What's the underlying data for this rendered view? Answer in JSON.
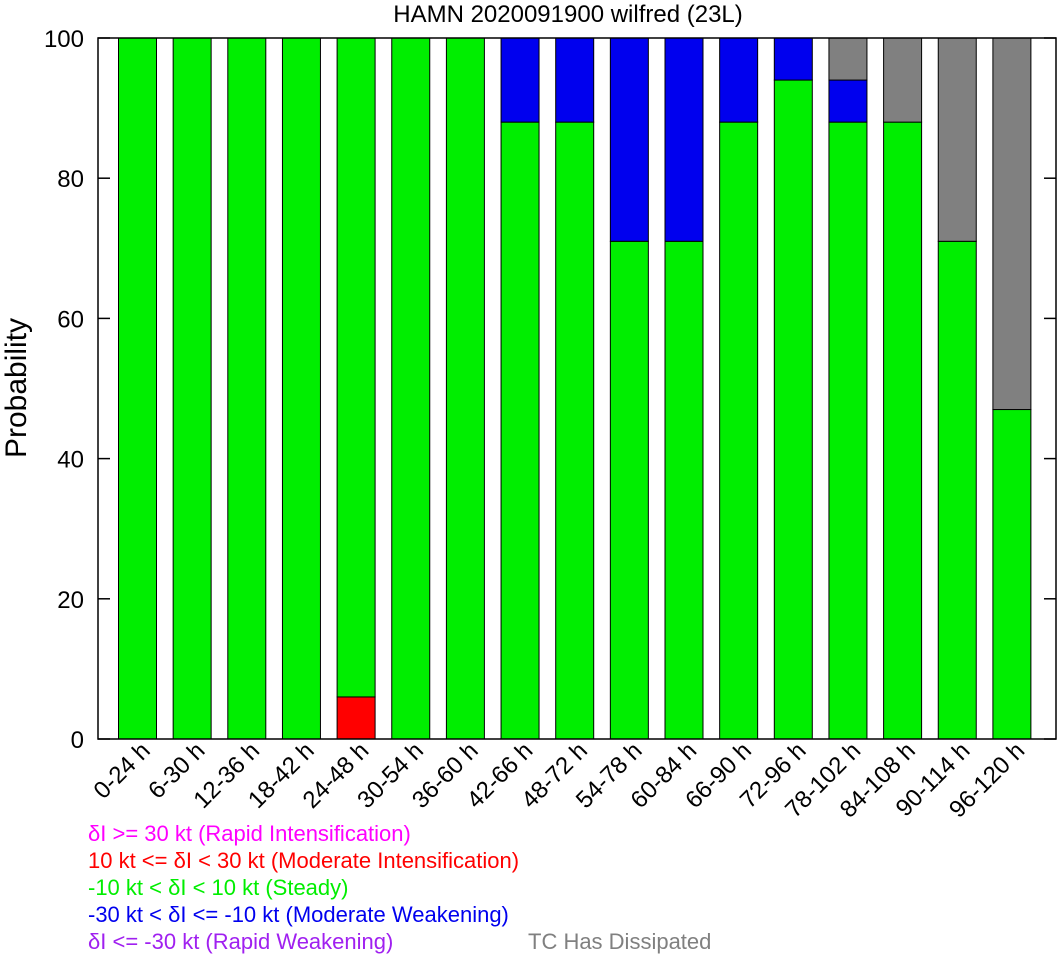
{
  "chart_data": {
    "type": "bar",
    "stacked": true,
    "title": "HAMN 2020091900 wilfred (23L)",
    "xlabel": "",
    "ylabel": "Probability",
    "ylim": [
      0,
      100
    ],
    "yticks": [
      0,
      20,
      40,
      60,
      80,
      100
    ],
    "grid": false,
    "categories": [
      "0-24 h",
      "6-30 h",
      "12-36 h",
      "18-42 h",
      "24-48 h",
      "30-54 h",
      "36-60 h",
      "42-66 h",
      "48-72 h",
      "54-78 h",
      "60-84 h",
      "66-90 h",
      "72-96 h",
      "78-102 h",
      "84-108 h",
      "90-114 h",
      "96-120 h"
    ],
    "series": [
      {
        "name": "δI >= 30 kt (Rapid Intensification)",
        "color": "#ff00ff",
        "values": [
          0,
          0,
          0,
          0,
          0,
          0,
          0,
          0,
          0,
          0,
          0,
          0,
          0,
          0,
          0,
          0,
          0
        ]
      },
      {
        "name": "10 kt <= δI < 30 kt (Moderate Intensification)",
        "color": "#ff0000",
        "values": [
          0,
          0,
          0,
          0,
          6,
          0,
          0,
          0,
          0,
          0,
          0,
          0,
          0,
          0,
          0,
          0,
          0
        ]
      },
      {
        "name": "-10 kt < δI < 10 kt (Steady)",
        "color": "#00ee00",
        "values": [
          100,
          100,
          100,
          100,
          94,
          100,
          100,
          88,
          88,
          71,
          71,
          88,
          94,
          88,
          88,
          71,
          47
        ]
      },
      {
        "name": "-30 kt < δI <= -10 kt (Moderate Weakening)",
        "color": "#0000ee",
        "values": [
          0,
          0,
          0,
          0,
          0,
          0,
          0,
          12,
          12,
          29,
          29,
          12,
          6,
          6,
          0,
          0,
          0
        ]
      },
      {
        "name": "δI <= -30 kt (Rapid Weakening)",
        "color": "#a020f0",
        "values": [
          0,
          0,
          0,
          0,
          0,
          0,
          0,
          0,
          0,
          0,
          0,
          0,
          0,
          0,
          0,
          0,
          0
        ]
      },
      {
        "name": "TC Has Dissipated",
        "color": "#808080",
        "values": [
          0,
          0,
          0,
          0,
          0,
          0,
          0,
          0,
          0,
          0,
          0,
          0,
          0,
          6,
          12,
          29,
          53
        ]
      }
    ]
  },
  "legend": {
    "items": [
      {
        "text": "δI >= 30 kt (Rapid Intensification)",
        "color": "#ff00ff"
      },
      {
        "text": "10 kt <= δI < 30 kt (Moderate Intensification)",
        "color": "#ff0000"
      },
      {
        "text": "-10 kt < δI < 10 kt (Steady)",
        "color": "#00ee00"
      },
      {
        "text": "-30 kt < δI <= -10 kt (Moderate Weakening)",
        "color": "#0000ee"
      },
      {
        "text": "δI <= -30 kt (Rapid Weakening)",
        "color": "#a020f0"
      },
      {
        "text": "TC Has Dissipated",
        "color": "#808080"
      }
    ]
  }
}
